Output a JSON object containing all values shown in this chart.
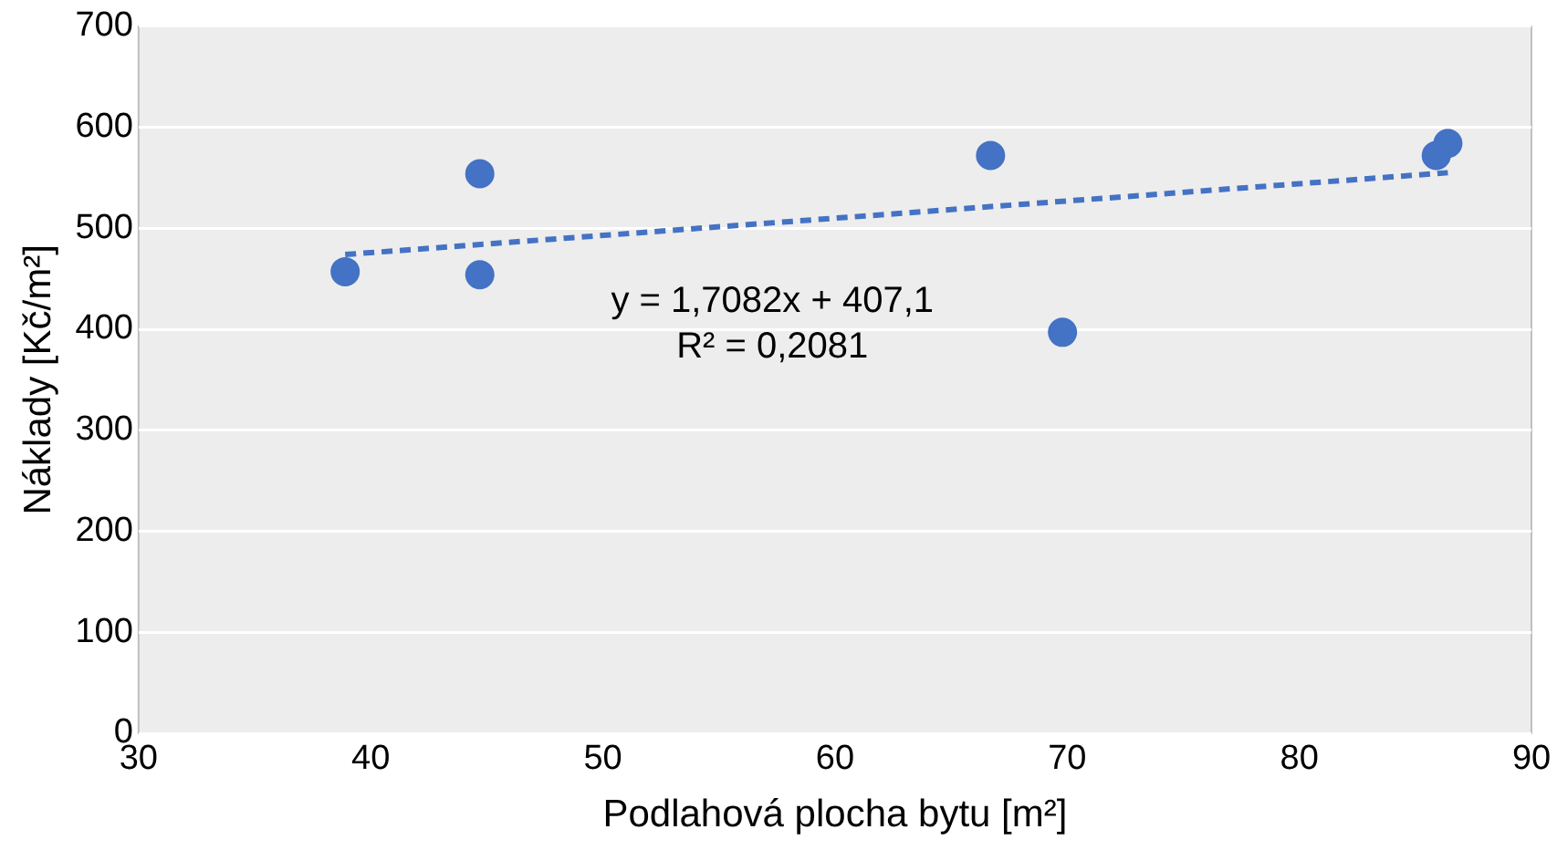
{
  "chart_data": {
    "type": "scatter",
    "xlabel": "Podlahová plocha bytu [m²]",
    "ylabel": "Náklady [Kč/m²]",
    "series": [
      {
        "color": "#4472c4",
        "marker": "circle",
        "x": [
          38.9,
          44.7,
          44.7,
          66.7,
          69.8,
          85.9,
          86.4
        ],
        "values": [
          457,
          554,
          454,
          572,
          397,
          572,
          584
        ]
      },
      {
        "type": "line",
        "color": "#4472c4",
        "line_style": "dashed",
        "marker": "none",
        "x": [
          38.9,
          86.4
        ],
        "values": [
          474,
          555
        ]
      }
    ],
    "xlim": [
      30,
      90
    ],
    "xticks": [
      30,
      40,
      50,
      60,
      70,
      80,
      90
    ],
    "ylim": [
      0,
      700
    ],
    "yticks": [
      0,
      100,
      200,
      300,
      400,
      500,
      600,
      700
    ],
    "grid": "y",
    "annotations": [
      "y = 1,7082x + 407,1",
      "R² = 0,2081"
    ]
  }
}
